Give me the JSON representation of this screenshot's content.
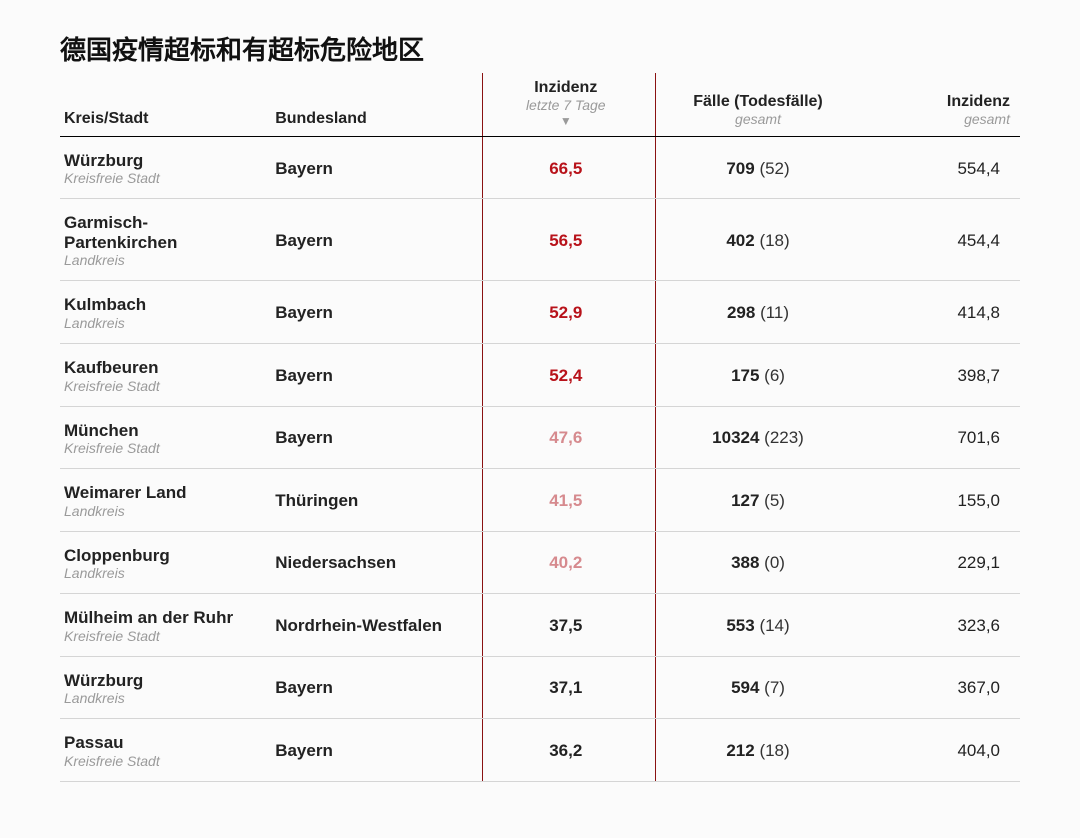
{
  "title": "德国疫情超标和有超标危险地区",
  "colors": {
    "red_strong": "#b8121a",
    "red_light": "#d68a8e",
    "text": "#222222",
    "separator": "#8a1212"
  },
  "thresholds": {
    "strong_min": 50,
    "light_min": 40
  },
  "headers": {
    "kreis": {
      "label": "Kreis/Stadt"
    },
    "bundesland": {
      "label": "Bundesland"
    },
    "inz7": {
      "label": "Inzidenz",
      "sub": "letzte 7 Tage"
    },
    "cases": {
      "label": "Fälle (Todesfälle)",
      "sub": "gesamt"
    },
    "inzg": {
      "label": "Inzidenz",
      "sub": "gesamt"
    }
  },
  "rows": [
    {
      "name": "Würzburg",
      "type": "Kreisfreie Stadt",
      "state": "Bayern",
      "inz7": "66,5",
      "cases": "709",
      "deaths": "52",
      "inzg": "554,4"
    },
    {
      "name": "Garmisch-Partenkirchen",
      "type": "Landkreis",
      "state": "Bayern",
      "inz7": "56,5",
      "cases": "402",
      "deaths": "18",
      "inzg": "454,4"
    },
    {
      "name": "Kulmbach",
      "type": "Landkreis",
      "state": "Bayern",
      "inz7": "52,9",
      "cases": "298",
      "deaths": "11",
      "inzg": "414,8"
    },
    {
      "name": "Kaufbeuren",
      "type": "Kreisfreie Stadt",
      "state": "Bayern",
      "inz7": "52,4",
      "cases": "175",
      "deaths": "6",
      "inzg": "398,7"
    },
    {
      "name": "München",
      "type": "Kreisfreie Stadt",
      "state": "Bayern",
      "inz7": "47,6",
      "cases": "10324",
      "deaths": "223",
      "inzg": "701,6"
    },
    {
      "name": "Weimarer Land",
      "type": "Landkreis",
      "state": "Thüringen",
      "inz7": "41,5",
      "cases": "127",
      "deaths": "5",
      "inzg": "155,0"
    },
    {
      "name": "Cloppenburg",
      "type": "Landkreis",
      "state": "Niedersachsen",
      "inz7": "40,2",
      "cases": "388",
      "deaths": "0",
      "inzg": "229,1"
    },
    {
      "name": "Mülheim an der Ruhr",
      "type": "Kreisfreie Stadt",
      "state": "Nordrhein-Westfalen",
      "inz7": "37,5",
      "cases": "553",
      "deaths": "14",
      "inzg": "323,6"
    },
    {
      "name": "Würzburg",
      "type": "Landkreis",
      "state": "Bayern",
      "inz7": "37,1",
      "cases": "594",
      "deaths": "7",
      "inzg": "367,0"
    },
    {
      "name": "Passau",
      "type": "Kreisfreie Stadt",
      "state": "Bayern",
      "inz7": "36,2",
      "cases": "212",
      "deaths": "18",
      "inzg": "404,0"
    }
  ]
}
